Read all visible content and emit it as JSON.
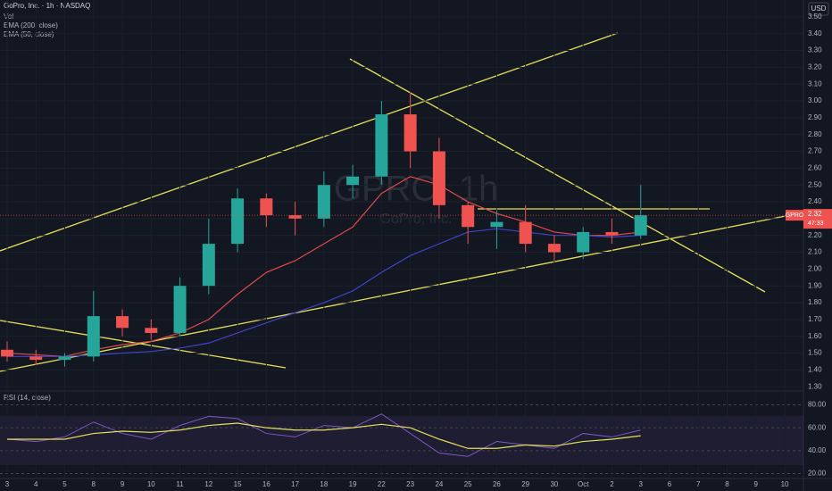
{
  "chart_data": {
    "type": "candlestick",
    "title": "GoPro, Inc. · 1h · NASDAQ",
    "watermark": "GPRO, 1h",
    "watermark_subtitle": "GoPro, Inc.",
    "currency": "USD",
    "indicators": [
      "Vol",
      "EMA (200, close)",
      "EMA (50, close)"
    ],
    "rsi_title": "RSI (14, close)",
    "last_price_symbol": "GPRO",
    "last_price": {
      "value": 2.32,
      "label": "2.32"
    },
    "countdown": "47:33",
    "categories": [
      "3",
      "4",
      "5",
      "8",
      "9",
      "10",
      "11",
      "12",
      "15",
      "16",
      "17",
      "18",
      "19",
      "22",
      "23",
      "24",
      "25",
      "26",
      "29",
      "30",
      "Oct",
      "2",
      "3",
      "6",
      "7",
      "8",
      "9",
      "10"
    ],
    "open": [
      1.52,
      1.48,
      1.46,
      1.48,
      1.72,
      1.65,
      1.62,
      1.9,
      2.15,
      2.42,
      2.32,
      2.3,
      2.5,
      2.55,
      2.92,
      2.7,
      2.38,
      2.25,
      2.28,
      2.15,
      2.1,
      2.22,
      2.2,
      null,
      null,
      null,
      null,
      null
    ],
    "high": [
      1.57,
      1.52,
      1.5,
      1.87,
      1.76,
      1.7,
      1.95,
      2.3,
      2.48,
      2.45,
      2.4,
      2.58,
      2.62,
      3.0,
      3.05,
      2.78,
      2.4,
      2.35,
      2.38,
      2.2,
      2.25,
      2.3,
      2.5,
      null,
      null,
      null,
      null,
      null
    ],
    "low": [
      1.45,
      1.43,
      1.42,
      1.45,
      1.6,
      1.58,
      1.6,
      1.85,
      2.1,
      2.25,
      2.2,
      2.25,
      2.42,
      2.5,
      2.6,
      2.3,
      2.15,
      2.12,
      2.1,
      2.05,
      2.06,
      2.15,
      2.18,
      null,
      null,
      null,
      null,
      null
    ],
    "close": [
      1.48,
      1.46,
      1.48,
      1.72,
      1.65,
      1.62,
      1.9,
      2.15,
      2.42,
      2.32,
      2.3,
      2.5,
      2.55,
      2.92,
      2.7,
      2.38,
      2.25,
      2.28,
      2.15,
      2.1,
      2.22,
      2.2,
      2.32,
      null,
      null,
      null,
      null,
      null
    ],
    "up_color": "#26a69a",
    "down_color": "#ef5350",
    "series": [
      {
        "name": "EMA (50, close)",
        "color": "#e04a4a",
        "values": [
          1.5,
          1.49,
          1.48,
          1.52,
          1.55,
          1.57,
          1.62,
          1.7,
          1.85,
          1.98,
          2.05,
          2.15,
          2.25,
          2.45,
          2.55,
          2.5,
          2.4,
          2.33,
          2.28,
          2.22,
          2.2,
          2.2,
          2.22,
          null,
          null,
          null,
          null,
          null
        ]
      },
      {
        "name": "EMA (200, close)",
        "color": "#3f44c8",
        "values": [
          1.48,
          1.48,
          1.48,
          1.49,
          1.5,
          1.51,
          1.53,
          1.56,
          1.62,
          1.68,
          1.74,
          1.8,
          1.87,
          1.98,
          2.08,
          2.15,
          2.22,
          2.24,
          2.22,
          2.2,
          2.2,
          2.19,
          2.2,
          null,
          null,
          null,
          null,
          null
        ]
      }
    ],
    "ylim": [
      1.28,
      3.6
    ],
    "yticks": [
      {
        "value": 3.5,
        "label": "3.50"
      },
      {
        "value": 3.4,
        "label": "3.40"
      },
      {
        "value": 3.3,
        "label": "3.30"
      },
      {
        "value": 3.2,
        "label": "3.20"
      },
      {
        "value": 3.1,
        "label": "3.10"
      },
      {
        "value": 3,
        "label": "3.00"
      },
      {
        "value": 2.9,
        "label": "2.90"
      },
      {
        "value": 2.8,
        "label": "2.80"
      },
      {
        "value": 2.7,
        "label": "2.70"
      },
      {
        "value": 2.6,
        "label": "2.60"
      },
      {
        "value": 2.5,
        "label": "2.50"
      },
      {
        "value": 2.4,
        "label": "2.40"
      },
      {
        "value": 2.3,
        "label": "2.30"
      },
      {
        "value": 2.2,
        "label": "2.20"
      },
      {
        "value": 2.1,
        "label": "2.10"
      },
      {
        "value": 2,
        "label": "2.00"
      },
      {
        "value": 1.9,
        "label": "1.90"
      },
      {
        "value": 1.8,
        "label": "1.80"
      },
      {
        "value": 1.7,
        "label": "1.70"
      },
      {
        "value": 1.6,
        "label": "1.60"
      },
      {
        "value": 1.5,
        "label": "1.50"
      },
      {
        "value": 1.4,
        "label": "1.40"
      },
      {
        "value": 1.3,
        "label": "1.30"
      }
    ],
    "rsi": {
      "color": "#7e57c2",
      "values": [
        50,
        48,
        52,
        65,
        55,
        50,
        62,
        70,
        68,
        55,
        52,
        62,
        60,
        72,
        55,
        38,
        35,
        48,
        45,
        42,
        55,
        52,
        58,
        null,
        null,
        null,
        null,
        null
      ],
      "ma_color": "#e6e05a",
      "ma_values": [
        50,
        50,
        50,
        55,
        57,
        56,
        58,
        62,
        64,
        60,
        58,
        58,
        60,
        63,
        60,
        50,
        42,
        42,
        45,
        44,
        48,
        50,
        53,
        null,
        null,
        null,
        null,
        null
      ],
      "ylim": [
        16.5,
        90.5
      ],
      "yticks": [
        {
          "value": 80,
          "label": "80.00"
        },
        {
          "value": 60,
          "label": "60.00"
        },
        {
          "value": 40,
          "label": "40.00"
        },
        {
          "value": 20,
          "label": "20.00"
        }
      ]
    },
    "grid": true
  }
}
